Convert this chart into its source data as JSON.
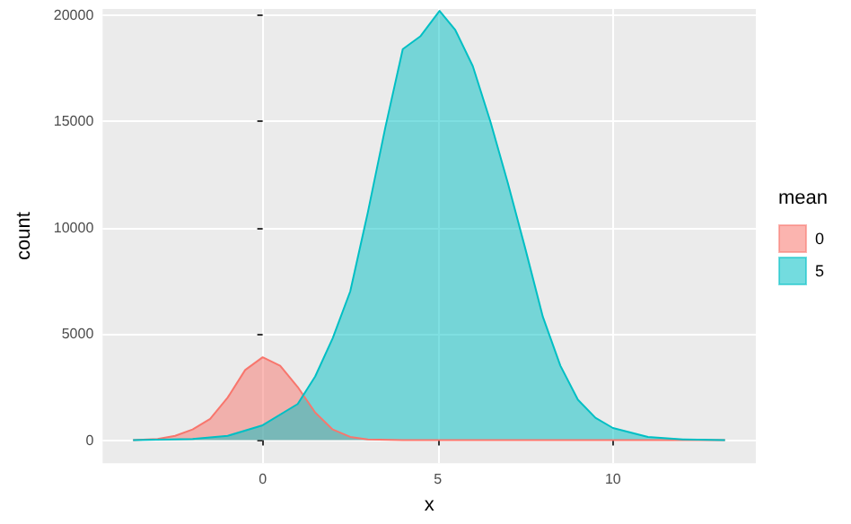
{
  "chart_data": {
    "type": "area",
    "xlabel": "x",
    "ylabel": "count",
    "legend_title": "mean",
    "legend": "right",
    "grid": true,
    "xlim": [
      -4.57,
      14.08
    ],
    "ylim": [
      -1085,
      20290
    ],
    "xticks": [
      0,
      5,
      10
    ],
    "yticks": [
      0,
      5000,
      10000,
      15000,
      20000
    ],
    "series": [
      {
        "name": "0",
        "color": "#f8766d",
        "x": [
          -3.7,
          -3,
          -2.5,
          -2,
          -1.5,
          -1,
          -0.5,
          0,
          0.5,
          1,
          1.5,
          2,
          2.5,
          3,
          4,
          13.2
        ],
        "values": [
          0,
          50,
          200,
          500,
          1000,
          2000,
          3300,
          3900,
          3500,
          2500,
          1300,
          500,
          150,
          30,
          0,
          0
        ]
      },
      {
        "name": "5",
        "color": "#00bfc4",
        "x": [
          -3.7,
          -2,
          -1,
          0,
          1,
          1.5,
          2,
          2.5,
          3,
          3.5,
          4,
          4.5,
          5.05,
          5.5,
          6,
          6.5,
          7,
          7.5,
          8,
          8.5,
          9,
          9.5,
          10,
          11,
          12,
          13.2
        ],
        "values": [
          0,
          50,
          200,
          700,
          1700,
          3000,
          4800,
          7000,
          10700,
          14700,
          18400,
          19000,
          20200,
          19300,
          17600,
          15000,
          12100,
          9000,
          5800,
          3500,
          1900,
          1050,
          570,
          150,
          30,
          0
        ]
      }
    ]
  }
}
